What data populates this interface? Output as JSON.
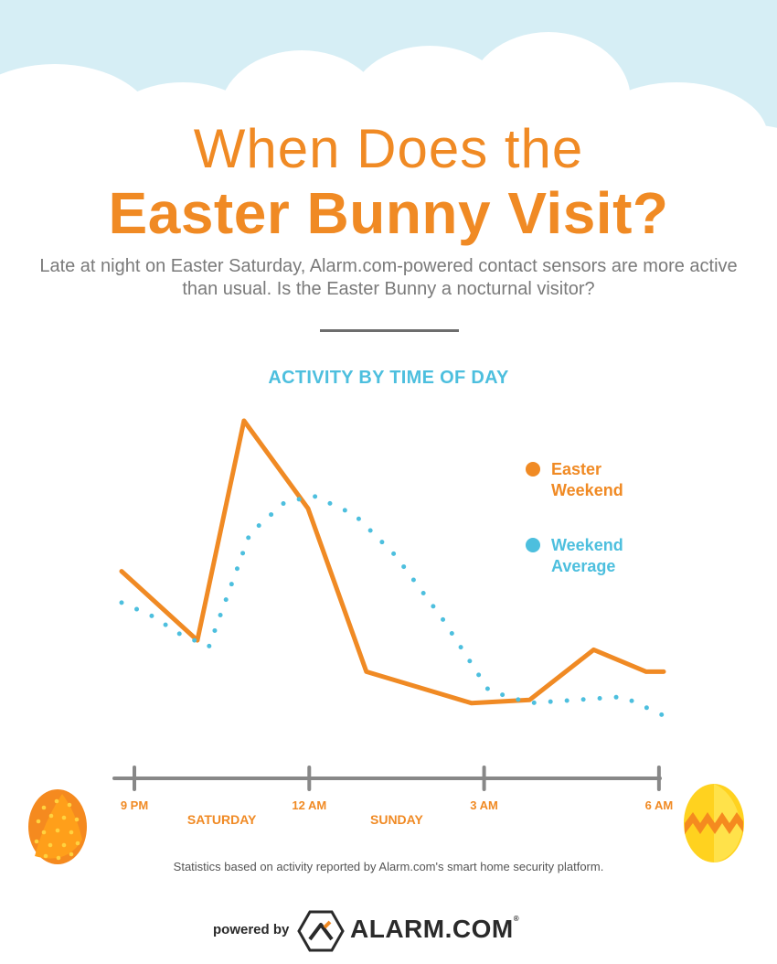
{
  "header": {
    "title_line1": "When Does the",
    "title_line2": "Easter Bunny Visit?",
    "subtitle": "Late at night on Easter Saturday, Alarm.com-powered contact sensors are more active than usual. Is the Easter Bunny a nocturnal visitor?"
  },
  "colors": {
    "orange": "#f08a24",
    "blue": "#4dbfde",
    "axis": "#888888",
    "sky": "#d6eef5"
  },
  "chart_data": {
    "type": "line",
    "title": "ACTIVITY BY TIME OF DAY",
    "xlabel": "",
    "ylabel": "",
    "x_ticks": [
      {
        "label": "9 PM",
        "x": 21
      },
      {
        "label": "12 AM",
        "x": 24
      },
      {
        "label": "3 AM",
        "x": 27
      },
      {
        "label": "6 AM",
        "x": 30
      }
    ],
    "day_labels": [
      {
        "label": "SATURDAY",
        "x": 22.5
      },
      {
        "label": "SUNDAY",
        "x": 25.5
      }
    ],
    "xlim": [
      21,
      30.3
    ],
    "ylim": [
      0,
      100
    ],
    "series": [
      {
        "name": "Easter Weekend",
        "color": "#f08a24",
        "style": "solid",
        "x": [
          21,
          22.3,
          23.1,
          24.2,
          25.2,
          27,
          28,
          29.1,
          30,
          30.3
        ],
        "y": [
          52,
          30,
          100,
          72,
          20,
          10,
          11,
          27,
          20,
          20
        ]
      },
      {
        "name": "Weekend Average",
        "color": "#4dbfde",
        "style": "dotted",
        "x": [
          21,
          21.5,
          22,
          22.5,
          23.2,
          23.8,
          24.3,
          25,
          25.7,
          26.5,
          27.3,
          28,
          28.8,
          29.6,
          30.3
        ],
        "y": [
          42,
          38,
          32,
          28,
          64,
          74,
          76,
          70,
          57,
          37,
          14,
          10,
          11,
          12,
          6
        ]
      }
    ],
    "legend": [
      {
        "line1": "Easter",
        "line2": "Weekend",
        "color": "#f08a24"
      },
      {
        "line1": "Weekend",
        "line2": "Average",
        "color": "#4dbfde"
      }
    ],
    "legend_position": "right",
    "grid": false
  },
  "footer": {
    "footnote": "Statistics based on activity reported by Alarm.com's smart home security platform.",
    "powered_by": "powered by",
    "brand": "ALARM.COM",
    "reg": "®"
  }
}
